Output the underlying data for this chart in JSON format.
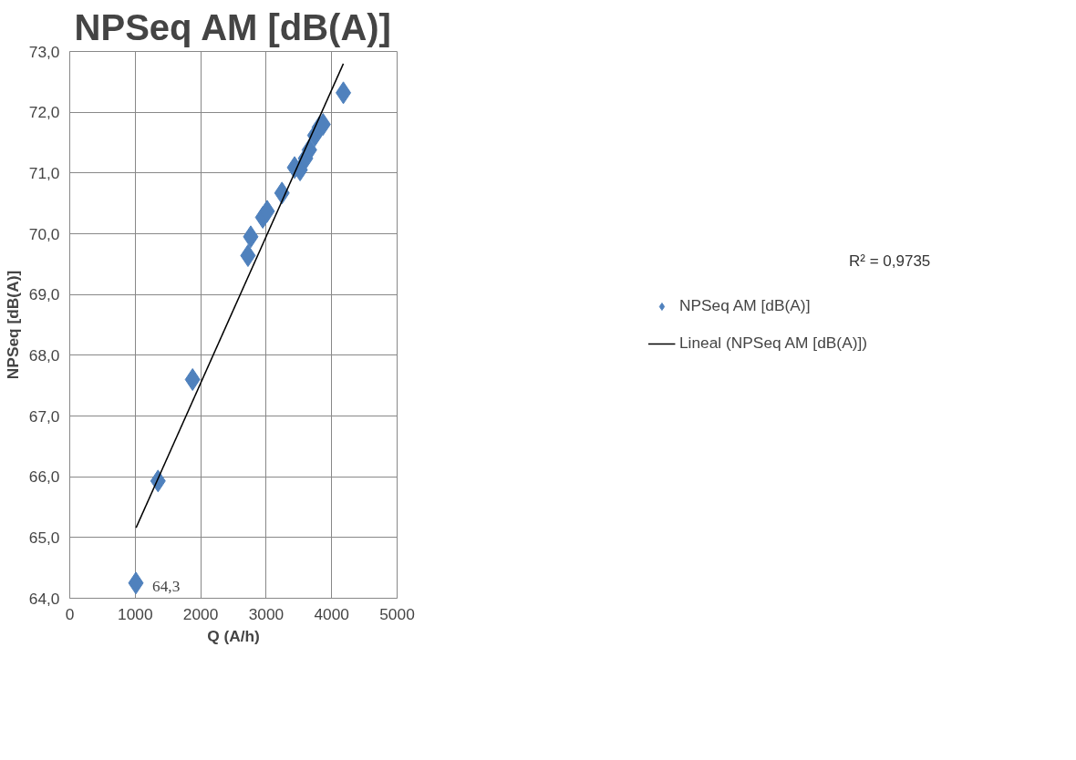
{
  "chart_data": {
    "type": "scatter",
    "title": "NPSeq AM [dB(A)]",
    "xlabel": "Q (A/h)",
    "ylabel": "NPSeq [dB(A)]",
    "series": [
      {
        "name": "NPSeq AM [dB(A)]",
        "color": "#4f81bd",
        "marker": "diamond",
        "x": [
          1010,
          1348,
          1876,
          2722,
          2764,
          2948,
          3015,
          3241,
          3434,
          3518,
          3601,
          3660,
          3744,
          3811,
          3869,
          4179
        ],
        "values": [
          64.25,
          65.93,
          67.6,
          69.64,
          69.95,
          70.27,
          70.37,
          70.67,
          71.09,
          71.05,
          71.24,
          71.38,
          71.62,
          71.75,
          71.8,
          72.32
        ],
        "value_labels": [
          "64,3",
          null,
          null,
          null,
          null,
          null,
          null,
          null,
          null,
          null,
          null,
          null,
          null,
          null,
          null,
          null
        ]
      },
      {
        "name": "Lineal (NPSeq AM [dB(A)])",
        "type": "line",
        "color": "#000000",
        "marker": "none",
        "x": [
          1013,
          4179
        ],
        "values": [
          65.16,
          72.8
        ]
      }
    ],
    "annotations": [
      "R² = 0,9735"
    ],
    "xlim": [
      0,
      5000
    ],
    "xticks": [
      0,
      1000,
      2000,
      3000,
      4000,
      5000
    ],
    "ylim": [
      64,
      73
    ],
    "yticks": [
      {
        "value": 64,
        "label": "64,0"
      },
      {
        "value": 65,
        "label": "65,0"
      },
      {
        "value": 66,
        "label": "66,0"
      },
      {
        "value": 67,
        "label": "67,0"
      },
      {
        "value": 68,
        "label": "68,0"
      },
      {
        "value": 69,
        "label": "69,0"
      },
      {
        "value": 70,
        "label": "70,0"
      },
      {
        "value": 71,
        "label": "71,0"
      },
      {
        "value": 72,
        "label": "72,0"
      },
      {
        "value": 73,
        "label": "73,0"
      }
    ],
    "grid": true,
    "legend": "right"
  }
}
